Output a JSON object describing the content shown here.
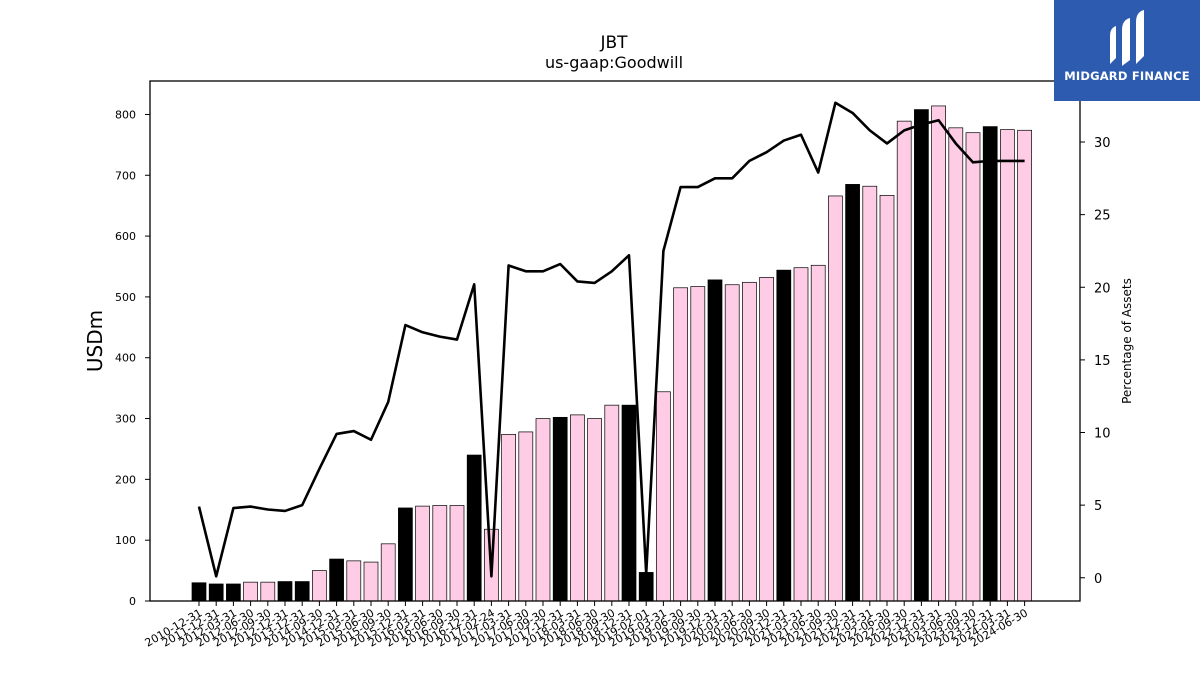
{
  "chart_data": {
    "type": "bar",
    "title": "JBT",
    "subtitle": "us-gaap:Goodwill",
    "ylabel": "USDm",
    "y2label": "Percentage of Assets",
    "ylim": [
      0,
      855
    ],
    "y2lim": [
      -1.6,
      34.2
    ],
    "yticks": [
      0,
      100,
      200,
      300,
      400,
      500,
      600,
      700,
      800
    ],
    "y2ticks": [
      0,
      5,
      10,
      15,
      20,
      25,
      30
    ],
    "categories": [
      "2010-12-31",
      "2011-12-31",
      "2012-03-31",
      "2012-06-30",
      "2012-09-30",
      "2012-12-31",
      "2013-12-31",
      "2014-09-30",
      "2014-12-31",
      "2015-03-31",
      "2015-06-30",
      "2015-09-30",
      "2015-12-31",
      "2016-03-31",
      "2016-06-30",
      "2016-09-30",
      "2016-12-31",
      "2017-02-24",
      "2017-03-31",
      "2017-06-30",
      "2017-09-30",
      "2017-12-31",
      "2018-03-31",
      "2018-06-30",
      "2018-09-30",
      "2018-12-31",
      "2019-02-01",
      "2019-03-31",
      "2019-06-30",
      "2019-09-30",
      "2019-12-31",
      "2020-03-31",
      "2020-06-30",
      "2020-09-30",
      "2020-12-31",
      "2021-03-31",
      "2021-06-30",
      "2021-09-30",
      "2021-12-31",
      "2022-03-31",
      "2022-06-30",
      "2022-09-30",
      "2022-12-31",
      "2023-03-31",
      "2023-06-30",
      "2023-09-30",
      "2023-12-31",
      "2024-03-31",
      "2024-06-30"
    ],
    "series": [
      {
        "type": "bar",
        "axis": "left",
        "values": [
          30,
          28,
          28,
          31,
          31,
          32,
          32,
          50,
          69,
          66,
          64,
          94,
          153,
          156,
          157,
          157,
          240,
          118,
          274,
          278,
          300,
          302,
          306,
          300,
          322,
          322,
          47,
          344,
          515,
          517,
          528,
          520,
          524,
          532,
          544,
          548,
          552,
          666,
          685,
          682,
          667,
          789,
          808,
          814,
          778,
          770,
          780,
          775,
          774
        ],
        "highlight": [
          true,
          true,
          true,
          false,
          false,
          true,
          true,
          false,
          true,
          false,
          false,
          false,
          true,
          false,
          false,
          false,
          true,
          false,
          false,
          false,
          false,
          true,
          false,
          false,
          false,
          true,
          true,
          false,
          false,
          false,
          true,
          false,
          false,
          false,
          true,
          false,
          false,
          false,
          true,
          false,
          false,
          false,
          true,
          false,
          false,
          false,
          true,
          false,
          false
        ]
      },
      {
        "type": "line",
        "axis": "right",
        "values": [
          4.9,
          0.1,
          4.8,
          4.9,
          4.7,
          4.6,
          5.0,
          7.5,
          9.9,
          10.1,
          9.5,
          12.1,
          17.4,
          16.9,
          16.6,
          16.4,
          20.2,
          0.1,
          21.5,
          21.1,
          21.1,
          21.6,
          20.4,
          20.3,
          21.1,
          22.2,
          0.3,
          22.5,
          26.9,
          26.9,
          27.5,
          27.5,
          28.7,
          29.3,
          30.1,
          30.5,
          27.9,
          32.7,
          32.0,
          30.8,
          29.9,
          30.8,
          31.2,
          31.5,
          29.9,
          28.6,
          28.7,
          28.7,
          28.7
        ]
      }
    ],
    "colors": {
      "bar_fill": "#ffcce6",
      "bar_highlight": "#000000",
      "bar_edge": "#000000",
      "line": "#000000"
    },
    "grid": false
  },
  "logo": {
    "text": "MIDGARD FINANCE"
  }
}
